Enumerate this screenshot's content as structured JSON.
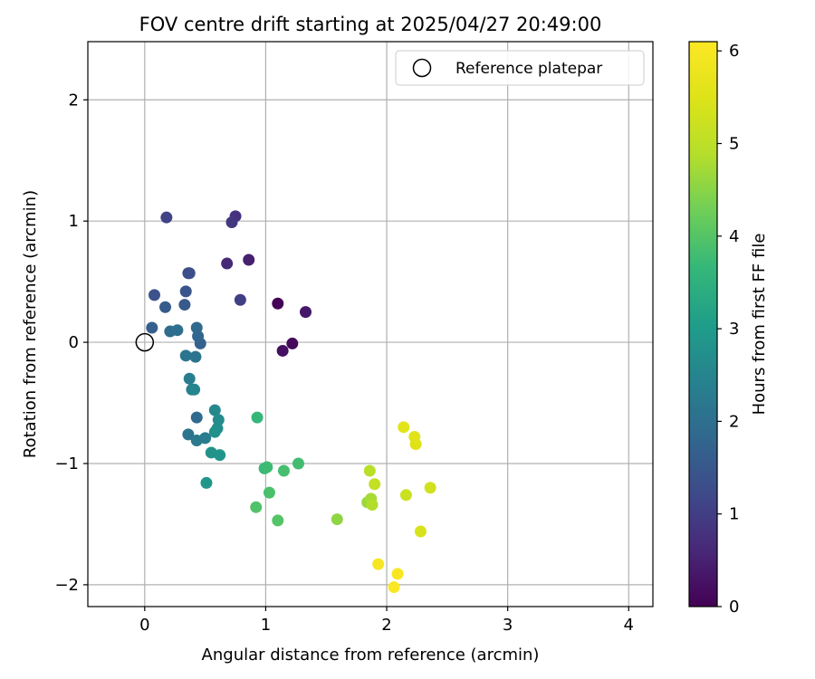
{
  "chart_data": {
    "type": "scatter",
    "title": "FOV centre drift starting at 2025/04/27 20:49:00",
    "xlabel": "Angular distance from reference (arcmin)",
    "ylabel": "Rotation from reference (arcmin)",
    "xlim": [
      -0.47,
      4.2
    ],
    "ylim": [
      -2.18,
      2.48
    ],
    "xticks": [
      0,
      1,
      2,
      3,
      4
    ],
    "xtick_labels": [
      "0",
      "1",
      "2",
      "3",
      "4"
    ],
    "yticks": [
      -2,
      -1,
      0,
      1,
      2
    ],
    "ytick_labels": [
      "−2",
      "−1",
      "0",
      "1",
      "2"
    ],
    "grid": true,
    "colormap": "viridis",
    "colorbar": {
      "label": "Hours from first FF file",
      "range": [
        0,
        6.1
      ],
      "ticks": [
        0,
        1,
        2,
        3,
        4,
        5,
        6
      ],
      "tick_labels": [
        "0",
        "1",
        "2",
        "3",
        "4",
        "5",
        "6"
      ]
    },
    "legend": {
      "position": "top-right",
      "entries": [
        {
          "label": "Reference platepar",
          "marker": "open-circle"
        }
      ]
    },
    "reference_point": {
      "x": 0,
      "y": 0
    },
    "series": [
      {
        "points": [
          {
            "x": 1.1,
            "y": 0.32,
            "t": 0.03
          },
          {
            "x": 1.22,
            "y": -0.01,
            "t": 0.12
          },
          {
            "x": 1.14,
            "y": -0.07,
            "t": 0.22
          },
          {
            "x": 1.33,
            "y": 0.25,
            "t": 0.35
          },
          {
            "x": 0.86,
            "y": 0.68,
            "t": 0.48
          },
          {
            "x": 0.68,
            "y": 0.65,
            "t": 0.62
          },
          {
            "x": 0.75,
            "y": 1.04,
            "t": 0.78
          },
          {
            "x": 0.72,
            "y": 0.99,
            "t": 0.9
          },
          {
            "x": 0.79,
            "y": 0.35,
            "t": 1.02
          },
          {
            "x": 0.18,
            "y": 1.03,
            "t": 1.12
          },
          {
            "x": 0.36,
            "y": 0.57,
            "t": 1.25
          },
          {
            "x": 0.37,
            "y": 0.57,
            "t": 1.32
          },
          {
            "x": 0.08,
            "y": 0.39,
            "t": 1.38
          },
          {
            "x": 0.34,
            "y": 0.42,
            "t": 1.45
          },
          {
            "x": 0.33,
            "y": 0.31,
            "t": 1.52
          },
          {
            "x": 0.17,
            "y": 0.29,
            "t": 1.58
          },
          {
            "x": 0.06,
            "y": 0.12,
            "t": 1.65
          },
          {
            "x": 0.46,
            "y": -0.01,
            "t": 1.7
          },
          {
            "x": 0.44,
            "y": 0.05,
            "t": 1.78
          },
          {
            "x": 0.43,
            "y": 0.12,
            "t": 1.85
          },
          {
            "x": 0.21,
            "y": 0.09,
            "t": 1.92
          },
          {
            "x": 0.27,
            "y": 0.1,
            "t": 2.0
          },
          {
            "x": 0.42,
            "y": -0.12,
            "t": 2.08
          },
          {
            "x": 0.34,
            "y": -0.11,
            "t": 2.15
          },
          {
            "x": 0.43,
            "y": -0.62,
            "t": 1.9
          },
          {
            "x": 0.36,
            "y": -0.76,
            "t": 2.1
          },
          {
            "x": 0.43,
            "y": -0.81,
            "t": 2.22
          },
          {
            "x": 0.5,
            "y": -0.79,
            "t": 2.3
          },
          {
            "x": 0.37,
            "y": -0.3,
            "t": 2.35
          },
          {
            "x": 0.39,
            "y": -0.39,
            "t": 2.42
          },
          {
            "x": 0.41,
            "y": -0.39,
            "t": 2.5
          },
          {
            "x": 0.58,
            "y": -0.56,
            "t": 2.58
          },
          {
            "x": 0.61,
            "y": -0.64,
            "t": 2.65
          },
          {
            "x": 0.6,
            "y": -0.71,
            "t": 2.7
          },
          {
            "x": 0.58,
            "y": -0.74,
            "t": 2.75
          },
          {
            "x": 0.55,
            "y": -0.91,
            "t": 2.8
          },
          {
            "x": 0.62,
            "y": -0.93,
            "t": 2.85
          },
          {
            "x": 0.51,
            "y": -1.16,
            "t": 2.9
          },
          {
            "x": 0.93,
            "y": -0.62,
            "t": 3.65
          },
          {
            "x": 0.99,
            "y": -1.04,
            "t": 3.7
          },
          {
            "x": 1.01,
            "y": -1.03,
            "t": 3.75
          },
          {
            "x": 1.27,
            "y": -1.0,
            "t": 3.8
          },
          {
            "x": 1.15,
            "y": -1.06,
            "t": 3.85
          },
          {
            "x": 1.03,
            "y": -1.24,
            "t": 3.9
          },
          {
            "x": 0.92,
            "y": -1.36,
            "t": 3.95
          },
          {
            "x": 1.1,
            "y": -1.47,
            "t": 4.0
          },
          {
            "x": 1.59,
            "y": -1.46,
            "t": 4.55
          },
          {
            "x": 1.84,
            "y": -1.32,
            "t": 4.65
          },
          {
            "x": 1.87,
            "y": -1.29,
            "t": 4.75
          },
          {
            "x": 1.88,
            "y": -1.34,
            "t": 4.85
          },
          {
            "x": 1.86,
            "y": -1.06,
            "t": 4.95
          },
          {
            "x": 1.9,
            "y": -1.17,
            "t": 5.1
          },
          {
            "x": 2.16,
            "y": -1.26,
            "t": 5.2
          },
          {
            "x": 2.36,
            "y": -1.2,
            "t": 5.3
          },
          {
            "x": 2.28,
            "y": -1.56,
            "t": 5.4
          },
          {
            "x": 2.24,
            "y": -0.84,
            "t": 5.5
          },
          {
            "x": 2.23,
            "y": -0.78,
            "t": 5.55
          },
          {
            "x": 2.14,
            "y": -0.7,
            "t": 5.6
          },
          {
            "x": 1.93,
            "y": -1.83,
            "t": 5.95
          },
          {
            "x": 2.09,
            "y": -1.91,
            "t": 6.0
          },
          {
            "x": 2.06,
            "y": -2.02,
            "t": 6.05
          }
        ]
      }
    ]
  }
}
